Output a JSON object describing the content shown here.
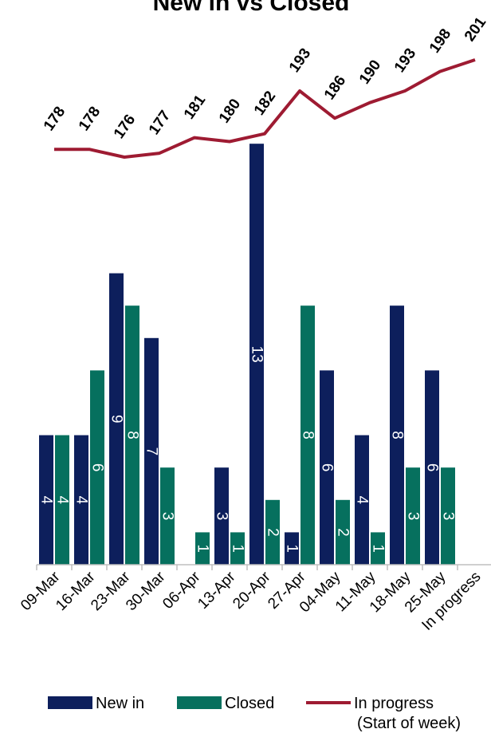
{
  "chart_data": {
    "type": "bar",
    "title": "New in vs Closed",
    "categories": [
      "09-Mar",
      "16-Mar",
      "23-Mar",
      "30-Mar",
      "06-Apr",
      "13-Apr",
      "20-Apr",
      "27-Apr",
      "04-May",
      "11-May",
      "18-May",
      "25-May",
      "In progress"
    ],
    "series": [
      {
        "name": "New in",
        "type": "bar",
        "color": "#0d1f5c",
        "values": [
          4,
          4,
          9,
          7,
          0,
          3,
          13,
          1,
          6,
          4,
          8,
          6,
          null
        ]
      },
      {
        "name": "Closed",
        "type": "bar",
        "color": "#06705e",
        "values": [
          4,
          6,
          8,
          3,
          1,
          1,
          2,
          8,
          2,
          1,
          3,
          3,
          null
        ]
      },
      {
        "name": "In progress",
        "name_line2": "(Start of week)",
        "type": "line",
        "color": "#9e1b32",
        "values": [
          178,
          178,
          176,
          177,
          181,
          180,
          182,
          193,
          186,
          190,
          193,
          198,
          201
        ]
      }
    ],
    "bar_ylim": [
      0,
      13
    ],
    "line_ylim": [
      176,
      201
    ],
    "grid": false,
    "legend_position": "bottom"
  }
}
